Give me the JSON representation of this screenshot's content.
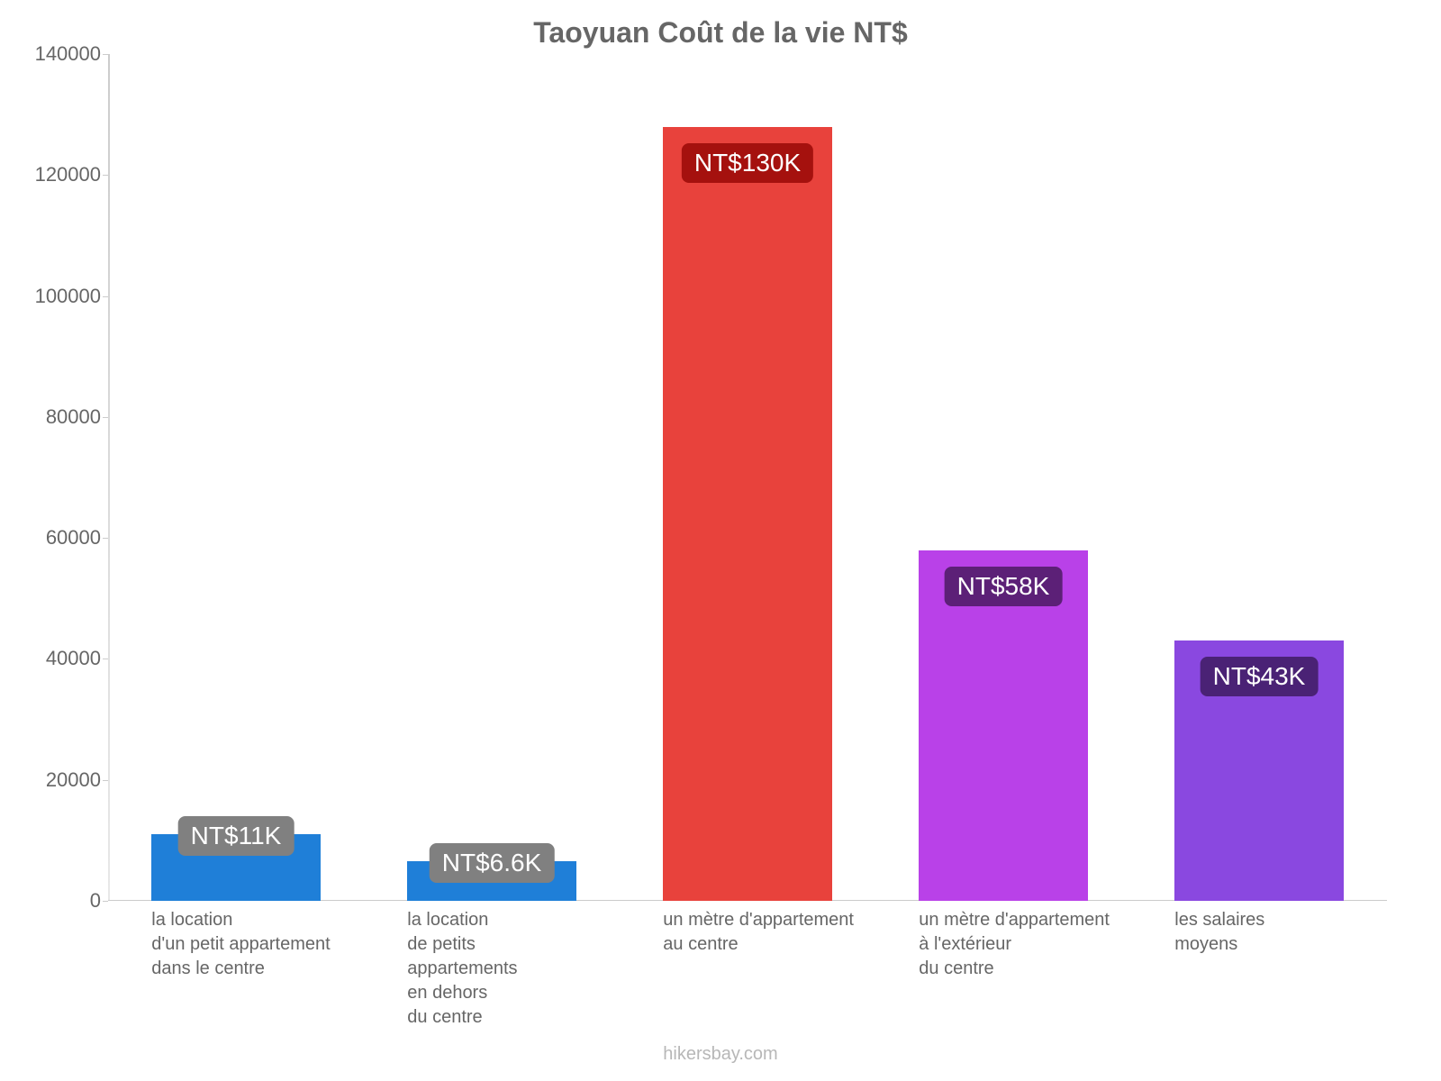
{
  "chart": {
    "type": "bar",
    "title": "Taoyuan Coût de la vie NT$",
    "title_color": "#666666",
    "title_fontsize": 32,
    "background_color": "#ffffff",
    "axis_color": "#cccccc",
    "tick_label_color": "#666666",
    "tick_fontsize": 22,
    "x_label_fontsize": 20,
    "ylim": [
      0,
      140000
    ],
    "ytick_step": 20000,
    "yticks": [
      {
        "value": 0,
        "label": "0"
      },
      {
        "value": 20000,
        "label": "20000"
      },
      {
        "value": 40000,
        "label": "40000"
      },
      {
        "value": 60000,
        "label": "60000"
      },
      {
        "value": 80000,
        "label": "80000"
      },
      {
        "value": 100000,
        "label": "100000"
      },
      {
        "value": 120000,
        "label": "120000"
      },
      {
        "value": 140000,
        "label": "140000"
      }
    ],
    "bar_width_ratio": 0.66,
    "bars": [
      {
        "value": 11000,
        "color": "#1f7fd8",
        "badge_text": "NT$11K",
        "badge_bg": "#808080",
        "category_lines": [
          "la location",
          "d'un petit appartement",
          "dans le centre"
        ]
      },
      {
        "value": 6600,
        "color": "#1f7fd8",
        "badge_text": "NT$6.6K",
        "badge_bg": "#808080",
        "category_lines": [
          "la location",
          "de petits",
          "appartements",
          "en dehors",
          "du centre"
        ]
      },
      {
        "value": 128000,
        "color": "#e8423c",
        "badge_text": "NT$130K",
        "badge_bg": "#a5110e",
        "category_lines": [
          "un mètre d'appartement",
          "au centre"
        ]
      },
      {
        "value": 58000,
        "color": "#b941e8",
        "badge_text": "NT$58K",
        "badge_bg": "#5c2077",
        "category_lines": [
          "un mètre d'appartement",
          "à l'extérieur",
          "du centre"
        ]
      },
      {
        "value": 43000,
        "color": "#8a48e0",
        "badge_text": "NT$43K",
        "badge_bg": "#4a2275",
        "category_lines": [
          "les salaires",
          "moyens"
        ]
      }
    ],
    "badge_text_color": "#ffffff",
    "badge_fontsize": 28,
    "footer": "hikersbay.com",
    "footer_color": "#b7b7b7"
  }
}
